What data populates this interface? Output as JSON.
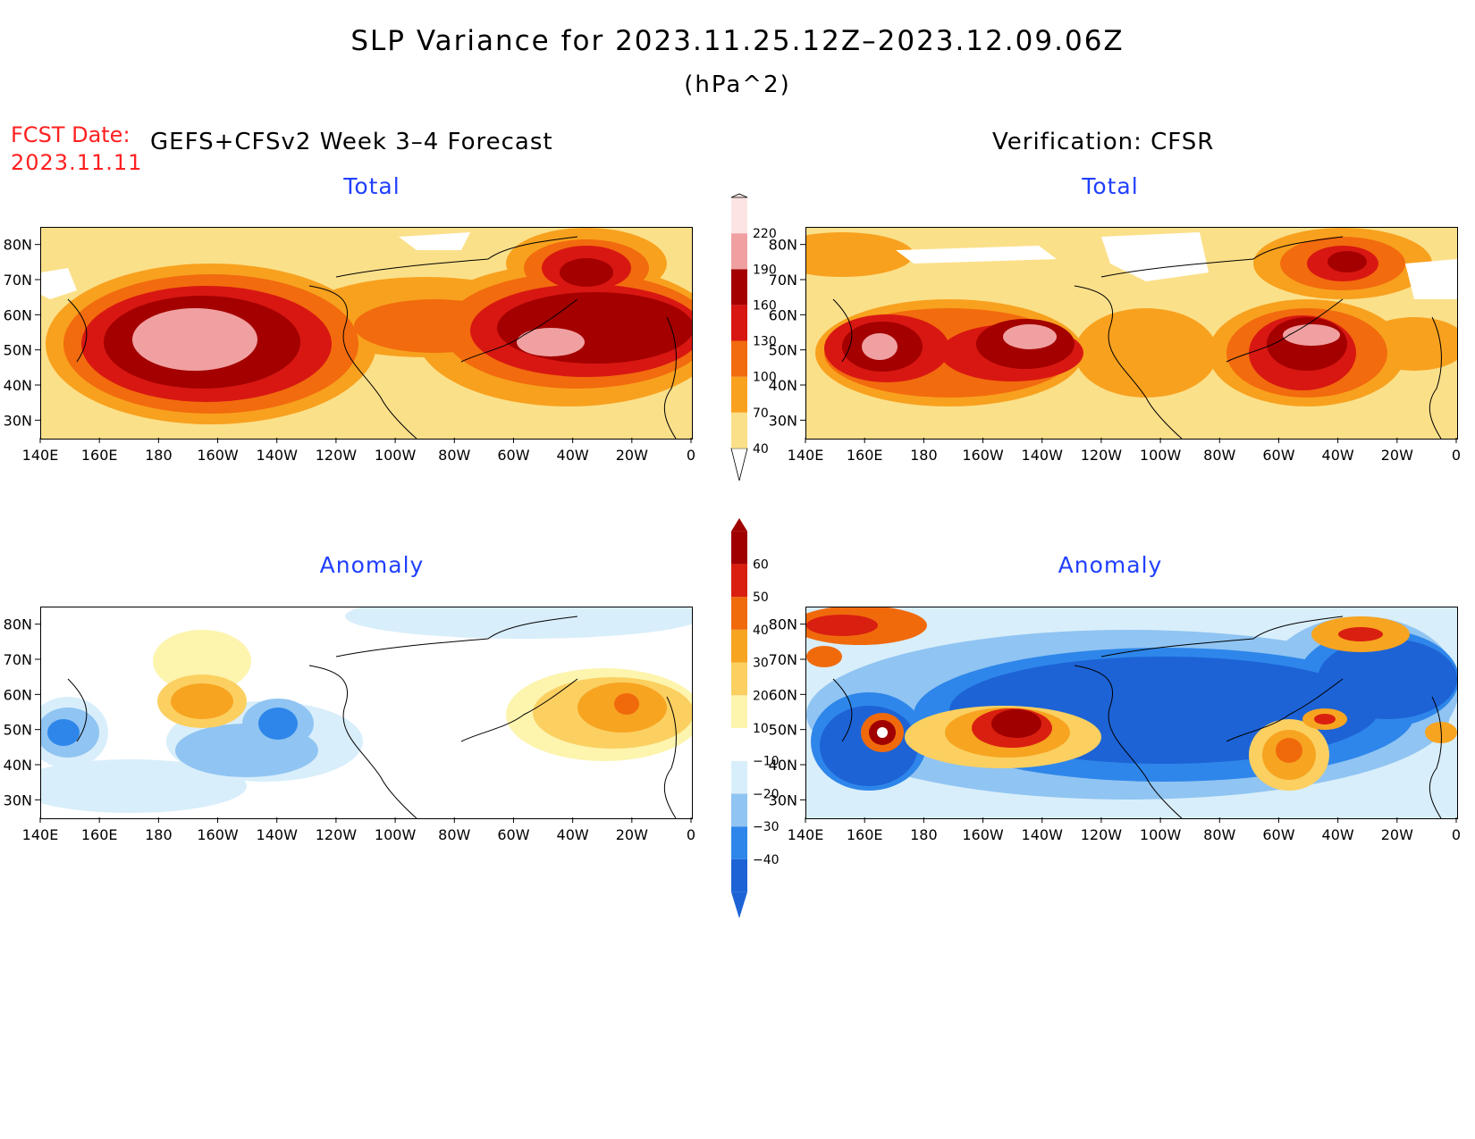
{
  "header": {
    "title": "SLP Variance for 2023.11.25.12Z–2023.12.09.06Z",
    "units": "(hPa^2)",
    "fcst_label": "FCST Date:",
    "fcst_date": "2023.11.11"
  },
  "columns": {
    "forecast_title": "GEFS+CFSv2 Week 3–4 Forecast",
    "verification_title": "Verification: CFSR"
  },
  "panels": {
    "total_title": "Total",
    "anomaly_title": "Anomaly"
  },
  "axes": {
    "lon_ticks": [
      "140E",
      "160E",
      "180",
      "160W",
      "140W",
      "120W",
      "100W",
      "80W",
      "60W",
      "40W",
      "20W",
      "0"
    ],
    "lat_ticks": [
      "80N",
      "70N",
      "60N",
      "50N",
      "40N",
      "30N"
    ],
    "lat_range": [
      25,
      85
    ],
    "lon_range_east": [
      140,
      360
    ]
  },
  "colorbars": {
    "total": {
      "levels": [
        "40",
        "70",
        "100",
        "130",
        "160",
        "190",
        "220"
      ],
      "colors": [
        "#fbe08a",
        "#f8a11e",
        "#f26b0e",
        "#d81712",
        "#a40000",
        "#f0a0a0",
        "#fde4e4"
      ]
    },
    "anomaly": {
      "levels": [
        "−40",
        "−30",
        "−20",
        "−10",
        "10",
        "20",
        "30",
        "40",
        "50",
        "60"
      ],
      "colors": [
        "#1d63d6",
        "#2e86ea",
        "#90c4f2",
        "#d8eefb",
        "#ffffff",
        "#fdf4ae",
        "#fbd061",
        "#f7a421",
        "#f06a0c",
        "#d91f10",
        "#a00000"
      ]
    }
  }
}
